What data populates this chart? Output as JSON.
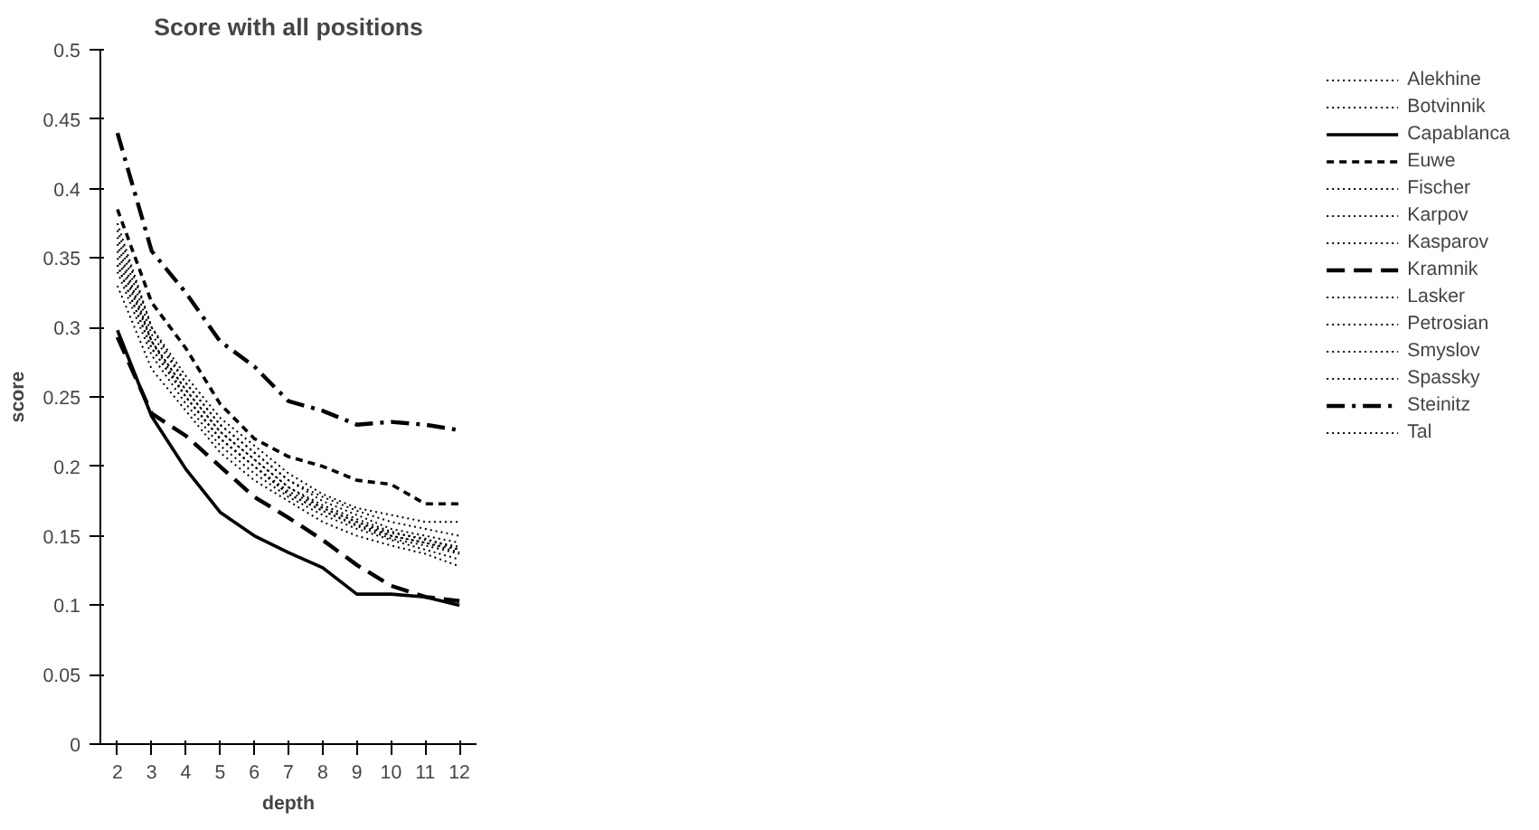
{
  "chart_data": {
    "type": "line",
    "title": "Score with all positions",
    "xlabel": "depth",
    "ylabel": "score",
    "categories": [
      "2",
      "3",
      "4",
      "5",
      "6",
      "7",
      "8",
      "9",
      "10",
      "11",
      "12"
    ],
    "ylim": [
      0,
      0.5
    ],
    "yticks": [
      0,
      0.05,
      0.1,
      0.15,
      0.2,
      0.25,
      0.3,
      0.35,
      0.4,
      0.45,
      0.5
    ],
    "grid": false,
    "legend": "right",
    "marker": "none",
    "series": [
      {
        "name": "Alekhine",
        "color": "#000000",
        "line_style": "dotted",
        "values": [
          0.375,
          0.3,
          0.265,
          0.235,
          0.215,
          0.195,
          0.18,
          0.17,
          0.165,
          0.16,
          0.16
        ]
      },
      {
        "name": "Botvinnik",
        "color": "#000000",
        "line_style": "dotted",
        "values": [
          0.365,
          0.295,
          0.26,
          0.23,
          0.21,
          0.19,
          0.175,
          0.165,
          0.155,
          0.15,
          0.145
        ]
      },
      {
        "name": "Capablanca",
        "color": "#000000",
        "line_style": "solid",
        "values": [
          0.298,
          0.236,
          0.198,
          0.167,
          0.15,
          0.138,
          0.127,
          0.108,
          0.108,
          0.106,
          0.1
        ]
      },
      {
        "name": "Euwe",
        "color": "#000000",
        "line_style": "dashed",
        "values": [
          0.385,
          0.318,
          0.285,
          0.245,
          0.22,
          0.207,
          0.2,
          0.19,
          0.187,
          0.173,
          0.173
        ]
      },
      {
        "name": "Fischer",
        "color": "#000000",
        "line_style": "dotted",
        "values": [
          0.355,
          0.29,
          0.255,
          0.225,
          0.205,
          0.185,
          0.17,
          0.16,
          0.152,
          0.148,
          0.14
        ]
      },
      {
        "name": "Karpov",
        "color": "#000000",
        "line_style": "dotted",
        "values": [
          0.35,
          0.29,
          0.25,
          0.22,
          0.2,
          0.18,
          0.168,
          0.158,
          0.15,
          0.145,
          0.138
        ]
      },
      {
        "name": "Kasparov",
        "color": "#000000",
        "line_style": "dotted",
        "values": [
          0.345,
          0.285,
          0.25,
          0.22,
          0.2,
          0.18,
          0.168,
          0.157,
          0.148,
          0.143,
          0.137
        ]
      },
      {
        "name": "Kramnik",
        "color": "#000000",
        "line_style": "longdash",
        "values": [
          0.293,
          0.238,
          0.222,
          0.2,
          0.178,
          0.163,
          0.147,
          0.129,
          0.114,
          0.106,
          0.103
        ]
      },
      {
        "name": "Lasker",
        "color": "#000000",
        "line_style": "dotted",
        "values": [
          0.37,
          0.3,
          0.26,
          0.23,
          0.21,
          0.19,
          0.178,
          0.168,
          0.16,
          0.155,
          0.15
        ]
      },
      {
        "name": "Petrosian",
        "color": "#000000",
        "line_style": "dotted",
        "values": [
          0.34,
          0.28,
          0.245,
          0.215,
          0.195,
          0.178,
          0.165,
          0.155,
          0.147,
          0.14,
          0.133
        ]
      },
      {
        "name": "Smyslov",
        "color": "#000000",
        "line_style": "dotted",
        "values": [
          0.36,
          0.29,
          0.255,
          0.225,
          0.205,
          0.185,
          0.172,
          0.162,
          0.153,
          0.147,
          0.142
        ]
      },
      {
        "name": "Spassky",
        "color": "#000000",
        "line_style": "dotted",
        "values": [
          0.345,
          0.285,
          0.25,
          0.22,
          0.2,
          0.182,
          0.17,
          0.16,
          0.15,
          0.145,
          0.14
        ]
      },
      {
        "name": "Steinitz",
        "color": "#000000",
        "line_style": "dashdot",
        "values": [
          0.44,
          0.355,
          0.325,
          0.29,
          0.272,
          0.247,
          0.24,
          0.23,
          0.232,
          0.23,
          0.226
        ]
      },
      {
        "name": "Tal",
        "color": "#000000",
        "line_style": "dotted",
        "values": [
          0.33,
          0.27,
          0.24,
          0.21,
          0.19,
          0.175,
          0.16,
          0.15,
          0.143,
          0.137,
          0.128
        ]
      }
    ]
  }
}
